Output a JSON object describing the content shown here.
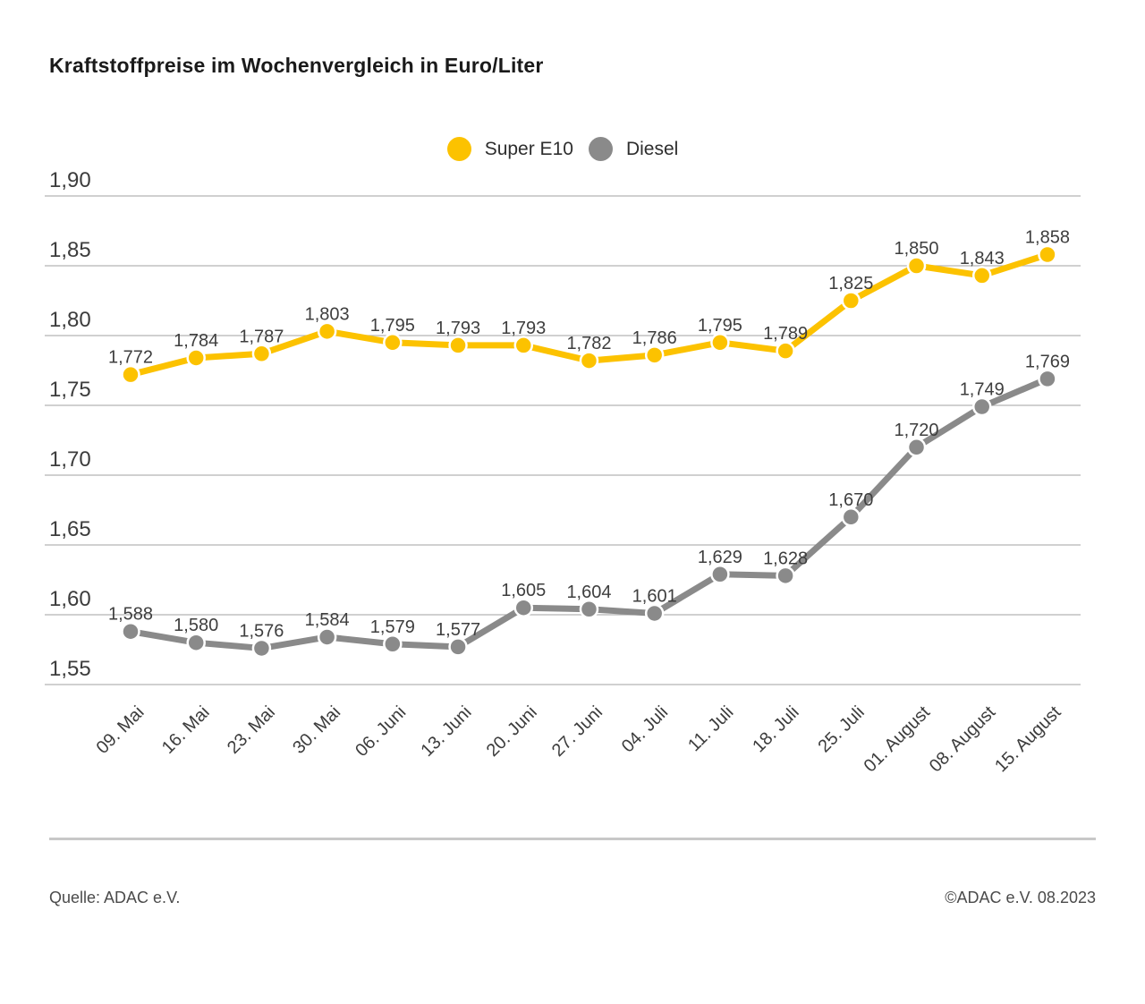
{
  "title": "Kraftstoffpreise im Wochenvergleich in Euro/Liter",
  "footer": {
    "source": "Quelle: ADAC e.V.",
    "copyright": "©ADAC e.V. 08.2023"
  },
  "colors": {
    "super_e10": "#fcc200",
    "diesel": "#8a8a8a",
    "grid": "#b4b4b4",
    "axis_text": "#3c3c3c",
    "label_text": "#3e3e3e"
  },
  "chart_data": {
    "type": "line",
    "title": "Kraftstoffpreise im Wochenvergleich in Euro/Liter",
    "categories": [
      "09. Mai",
      "16. Mai",
      "23. Mai",
      "30. Mai",
      "06. Juni",
      "13. Juni",
      "20. Juni",
      "27. Juni",
      "04. Juli",
      "11. Juli",
      "18. Juli",
      "25. Juli",
      "01. August",
      "08. August",
      "15. August"
    ],
    "series": [
      {
        "name": "Super E10",
        "color": "#fcc200",
        "values": [
          1.772,
          1.784,
          1.787,
          1.803,
          1.795,
          1.793,
          1.793,
          1.782,
          1.786,
          1.795,
          1.789,
          1.825,
          1.85,
          1.843,
          1.858
        ],
        "labels": [
          "1,772",
          "1,784",
          "1,787",
          "1,803",
          "1,795",
          "1,793",
          "1,793",
          "1,782",
          "1,786",
          "1,795",
          "1,789",
          "1,825",
          "1,850",
          "1,843",
          "1,858"
        ]
      },
      {
        "name": "Diesel",
        "color": "#8a8a8a",
        "values": [
          1.588,
          1.58,
          1.576,
          1.584,
          1.579,
          1.577,
          1.605,
          1.604,
          1.601,
          1.629,
          1.628,
          1.67,
          1.72,
          1.749,
          1.769
        ],
        "labels": [
          "1,588",
          "1,580",
          "1,576",
          "1,584",
          "1,579",
          "1,577",
          "1,605",
          "1,604",
          "1,601",
          "1,629",
          "1,628",
          "1,670",
          "1,720",
          "1,749",
          "1,769"
        ]
      }
    ],
    "ylabel": "Euro/Liter",
    "xlabel": "",
    "ylim": [
      1.55,
      1.9
    ],
    "yticks": [
      1.9,
      1.85,
      1.8,
      1.75,
      1.7,
      1.65,
      1.6,
      1.55
    ],
    "ytick_labels": [
      "1,90",
      "1,85",
      "1,80",
      "1,75",
      "1,70",
      "1,65",
      "1,60",
      "1,55"
    ],
    "grid": true,
    "legend_position": "top-center"
  }
}
